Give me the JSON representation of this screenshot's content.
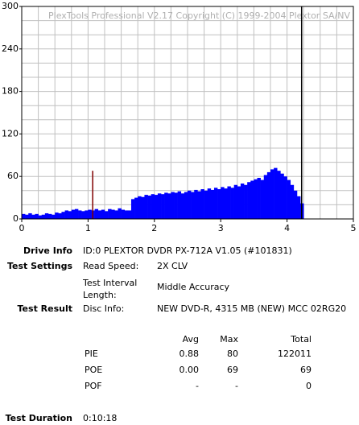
{
  "chart_data": {
    "type": "bar",
    "annotation": "PlexTools Professional V2.17 Copyright (C) 1999-2004 Plextor SA/NV",
    "x": [
      0,
      0.05,
      0.1,
      0.15,
      0.2,
      0.25,
      0.3,
      0.35,
      0.4,
      0.45,
      0.5,
      0.55,
      0.6,
      0.65,
      0.7,
      0.75,
      0.8,
      0.85,
      0.9,
      0.95,
      1.0,
      1.05,
      1.1,
      1.15,
      1.2,
      1.25,
      1.3,
      1.35,
      1.4,
      1.45,
      1.5,
      1.55,
      1.6,
      1.65,
      1.7,
      1.75,
      1.8,
      1.85,
      1.9,
      1.95,
      2.0,
      2.05,
      2.1,
      2.15,
      2.2,
      2.25,
      2.3,
      2.35,
      2.4,
      2.45,
      2.5,
      2.55,
      2.6,
      2.65,
      2.7,
      2.75,
      2.8,
      2.85,
      2.9,
      2.95,
      3.0,
      3.05,
      3.1,
      3.15,
      3.2,
      3.25,
      3.3,
      3.35,
      3.4,
      3.45,
      3.5,
      3.55,
      3.6,
      3.65,
      3.7,
      3.75,
      3.8,
      3.85,
      3.9,
      3.95,
      4.0,
      4.05,
      4.1,
      4.15,
      4.2
    ],
    "series": [
      {
        "color": "#0000ff",
        "values": [
          7,
          6,
          8,
          6,
          7,
          5,
          6,
          8,
          7,
          6,
          9,
          8,
          10,
          12,
          11,
          13,
          14,
          12,
          11,
          12,
          13,
          12,
          14,
          12,
          13,
          11,
          14,
          13,
          12,
          15,
          13,
          12,
          12,
          28,
          30,
          32,
          31,
          34,
          33,
          35,
          34,
          36,
          35,
          37,
          36,
          38,
          37,
          39,
          36,
          38,
          40,
          38,
          41,
          39,
          42,
          40,
          43,
          41,
          44,
          42,
          45,
          43,
          46,
          44,
          48,
          46,
          50,
          48,
          52,
          54,
          56,
          58,
          55,
          62,
          66,
          70,
          72,
          68,
          64,
          60,
          55,
          48,
          40,
          32,
          22
        ]
      },
      {
        "color": "#800000",
        "x": [
          1.07
        ],
        "values": [
          68
        ]
      }
    ],
    "end_marker": {
      "x": 4.22,
      "color": "#000000"
    },
    "xlim": [
      0,
      5
    ],
    "xticks": [
      0,
      1,
      2,
      3,
      4,
      5
    ],
    "ylim": [
      0,
      300
    ],
    "yticks": [
      0,
      60,
      120,
      180,
      240,
      300
    ],
    "minor_xticks": [
      0.25,
      0.5,
      0.75,
      1.25,
      1.5,
      1.75,
      2.25,
      2.5,
      2.75,
      3.25,
      3.5,
      3.75,
      4.25,
      4.5,
      4.75
    ],
    "minor_yticks": [
      20,
      40,
      80,
      100,
      140,
      160,
      200,
      220,
      260,
      280
    ],
    "grid": true,
    "grid_color": "#c0c0c0"
  },
  "info": {
    "drive": {
      "label": "Drive Info",
      "value": "ID:0 PLEXTOR DVDR PX-712A V1.05 (#101831)"
    },
    "settings": {
      "label": "Test Settings",
      "read_speed_label": "Read Speed:",
      "read_speed": "2X CLV",
      "interval_label": "Test Interval Length:",
      "interval": "Middle Accuracy"
    },
    "result": {
      "label": "Test Result",
      "disc_label": "Disc Info:",
      "disc": "NEW DVD-R, 4315 MB (NEW) MCC 02RG20"
    },
    "stats": {
      "columns": [
        "Avg",
        "Max",
        "Total"
      ],
      "rows": [
        [
          "PIE",
          "0.88",
          "80",
          "122011"
        ],
        [
          "POE",
          "0.00",
          "69",
          "69"
        ],
        [
          "POF",
          "-",
          "-",
          "0"
        ]
      ]
    },
    "duration": {
      "label": "Test Duration",
      "value": "0:10:18"
    }
  }
}
